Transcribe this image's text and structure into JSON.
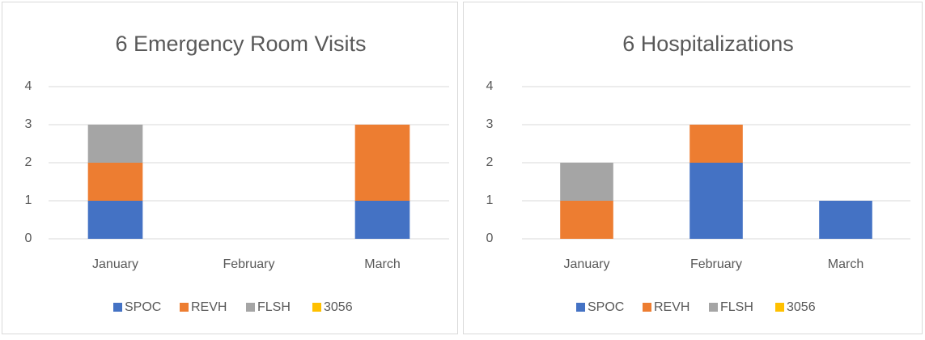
{
  "chart_data": [
    {
      "type": "bar",
      "stacked": true,
      "title": "6 Emergency Room Visits",
      "categories": [
        "January",
        "February",
        "March"
      ],
      "series": [
        {
          "name": "SPOC",
          "color": "#4472c4",
          "values": [
            1,
            0,
            1
          ]
        },
        {
          "name": "REVH",
          "color": "#ed7d31",
          "values": [
            1,
            0,
            2
          ]
        },
        {
          "name": "FLSH",
          "color": "#a5a5a5",
          "values": [
            1,
            0,
            0
          ]
        },
        {
          "name": "3056",
          "color": "#ffc000",
          "values": [
            0,
            0,
            0
          ]
        }
      ],
      "ylim": [
        0,
        4
      ],
      "yticks": [
        0,
        1,
        2,
        3,
        4
      ],
      "grid": true,
      "legend": "bottom"
    },
    {
      "type": "bar",
      "stacked": true,
      "title": "6 Hospitalizations",
      "categories": [
        "January",
        "February",
        "March"
      ],
      "series": [
        {
          "name": "SPOC",
          "color": "#4472c4",
          "values": [
            0,
            2,
            1
          ]
        },
        {
          "name": "REVH",
          "color": "#ed7d31",
          "values": [
            1,
            1,
            0
          ]
        },
        {
          "name": "FLSH",
          "color": "#a5a5a5",
          "values": [
            1,
            0,
            0
          ]
        },
        {
          "name": "3056",
          "color": "#ffc000",
          "values": [
            0,
            0,
            0
          ]
        }
      ],
      "ylim": [
        0,
        4
      ],
      "yticks": [
        0,
        1,
        2,
        3,
        4
      ],
      "grid": true,
      "legend": "bottom"
    }
  ]
}
